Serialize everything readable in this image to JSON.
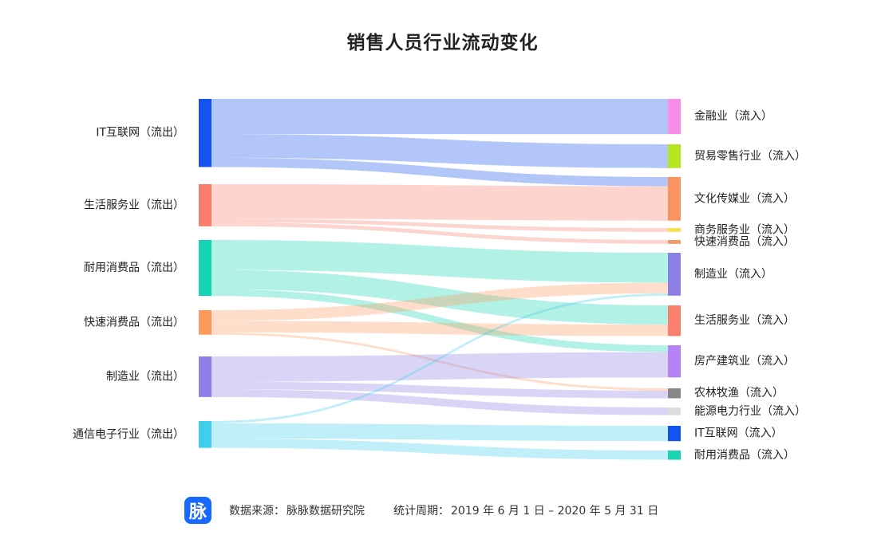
{
  "chart_data": {
    "type": "sankey",
    "title": "销售人员行业流动变化",
    "source_nodes": [
      {
        "name": "IT互联网（流出）",
        "color": "#1553f0"
      },
      {
        "name": "生活服务业（流出）",
        "color": "#fa7c6a"
      },
      {
        "name": "耐用消费品（流出）",
        "color": "#15d4b4"
      },
      {
        "name": "快速消费品（流出）",
        "color": "#fc9a5e"
      },
      {
        "name": "制造业（流出）",
        "color": "#8f7fe7"
      },
      {
        "name": "通信电子行业（流出）",
        "color": "#3fcfed"
      }
    ],
    "target_nodes": [
      {
        "name": "金融业（流入）",
        "color": "#f98ee9"
      },
      {
        "name": "贸易零售行业（流入）",
        "color": "#b5e51c"
      },
      {
        "name": "文化传媒业（流入）",
        "color": "#fb9262"
      },
      {
        "name": "商务服务业（流入）",
        "color": "#f8e150"
      },
      {
        "name": "快速消费品（流入）",
        "color": "#f19a6c"
      },
      {
        "name": "制造业（流入）",
        "color": "#8c7fe5"
      },
      {
        "name": "生活服务业（流入）",
        "color": "#fb7f6d"
      },
      {
        "name": "房产建筑业（流入）",
        "color": "#b782f5"
      },
      {
        "name": "农林牧渔（流入）",
        "color": "#888888"
      },
      {
        "name": "能源电力行业（流入）",
        "color": "#dddddd"
      },
      {
        "name": "IT互联网（流入）",
        "color": "#1553f0"
      },
      {
        "name": "耐用消费品（流入）",
        "color": "#1cd3b3"
      }
    ],
    "links": [
      {
        "source": 0,
        "target": 0,
        "value": 46
      },
      {
        "source": 0,
        "target": 1,
        "value": 31
      },
      {
        "source": 0,
        "target": 2,
        "value": 12
      },
      {
        "source": 1,
        "target": 2,
        "value": 45
      },
      {
        "source": 1,
        "target": 3,
        "value": 5
      },
      {
        "source": 1,
        "target": 4,
        "value": 5
      },
      {
        "source": 2,
        "target": 5,
        "value": 39
      },
      {
        "source": 2,
        "target": 6,
        "value": 25
      },
      {
        "source": 2,
        "target": 7,
        "value": 9
      },
      {
        "source": 3,
        "target": 5,
        "value": 14
      },
      {
        "source": 3,
        "target": 6,
        "value": 15
      },
      {
        "source": 3,
        "target": 8,
        "value": 3
      },
      {
        "source": 4,
        "target": 7,
        "value": 33
      },
      {
        "source": 4,
        "target": 8,
        "value": 10
      },
      {
        "source": 4,
        "target": 9,
        "value": 10
      },
      {
        "source": 5,
        "target": 5,
        "value": 3
      },
      {
        "source": 5,
        "target": 10,
        "value": 20
      },
      {
        "source": 5,
        "target": 11,
        "value": 12
      }
    ]
  },
  "footer": {
    "logo_glyph": "脉",
    "source_label": "数据来源：",
    "source_value": "脉脉数据研究院",
    "period_label": "统计周期：",
    "period_value": "2019 年 6 月 1 日 – 2020 年 5 月 31 日"
  }
}
